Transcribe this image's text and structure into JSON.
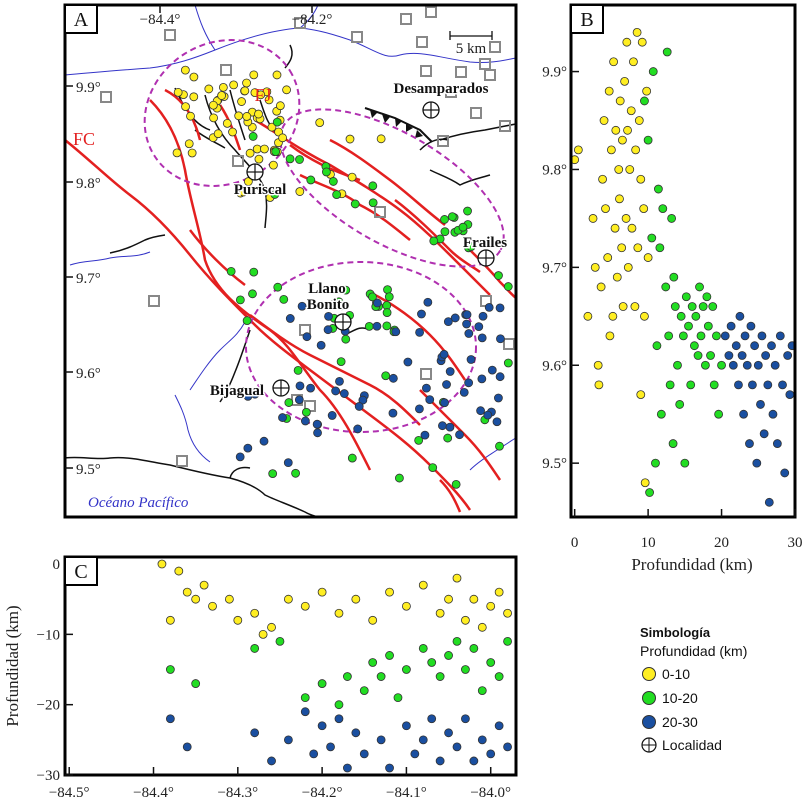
{
  "panels": {
    "a": {
      "letter": "A",
      "lon_ticks": [
        "−84.4°",
        "−84.2°"
      ],
      "lat_ticks": [
        "9.9°",
        "9.8°",
        "9.7°",
        "9.6°",
        "9.5°"
      ],
      "places": [
        "Desamparados",
        "Puriscal",
        "Frailes",
        "Llano",
        "Bonito",
        "Bijagual"
      ],
      "faults": [
        "FJ",
        "FC"
      ],
      "ocean": "Océano Pacífico",
      "scale_bar": "5 km"
    },
    "b": {
      "letter": "B",
      "lat_ticks": [
        "9.9°",
        "9.8°",
        "9.7°",
        "9.6°",
        "9.5°"
      ],
      "depth_ticks": [
        "0",
        "10",
        "20",
        "30"
      ],
      "xlabel": "Profundidad (km)"
    },
    "c": {
      "letter": "C",
      "depth_ticks": [
        "0",
        "−10",
        "−20",
        "−30"
      ],
      "lon_ticks": [
        "−84.5°",
        "−84.4°",
        "−84.3°",
        "−84.2°",
        "−84.1°",
        "−84.0°"
      ],
      "ylabel": "Profundidad (km)"
    }
  },
  "legend": {
    "title": "Simbología",
    "subtitle": "Profundidad (km)",
    "items": [
      {
        "label": "0-10",
        "color": "#ffee22"
      },
      {
        "label": "10-20",
        "color": "#22dd22"
      },
      {
        "label": "20-30",
        "color": "#1a4fa0"
      },
      {
        "label": "Localidad",
        "color": "#ffffff"
      }
    ]
  },
  "colors": {
    "fault": "#e32020",
    "cluster_outline": "#b030b0",
    "rivers": "#3434c8",
    "station": "#888888",
    "shallow": "#ffee22",
    "intermediate": "#22dd22",
    "deep": "#1a4fa0"
  },
  "chart_data": [
    {
      "type": "scatter",
      "panel": "B",
      "xlabel": "Profundidad (km)",
      "ylabel": "",
      "xlim": [
        -0.5,
        30
      ],
      "ylim": [
        9.445,
        9.968
      ],
      "series": [
        {
          "name": "0-10",
          "points": [
            [
              0,
              9.81
            ],
            [
              0.5,
              9.82
            ],
            [
              1.8,
              9.65
            ],
            [
              2.5,
              9.75
            ],
            [
              2.8,
              9.7
            ],
            [
              3.2,
              9.6
            ],
            [
              3.3,
              9.58
            ],
            [
              3.6,
              9.68
            ],
            [
              3.8,
              9.79
            ],
            [
              4,
              9.85
            ],
            [
              4.2,
              9.76
            ],
            [
              4.5,
              9.71
            ],
            [
              4.7,
              9.88
            ],
            [
              4.8,
              9.63
            ],
            [
              5,
              9.82
            ],
            [
              5.2,
              9.65
            ],
            [
              5.3,
              9.91
            ],
            [
              5.5,
              9.74
            ],
            [
              5.6,
              9.84
            ],
            [
              5.8,
              9.69
            ],
            [
              6,
              9.8
            ],
            [
              6.1,
              9.77
            ],
            [
              6.2,
              9.87
            ],
            [
              6.4,
              9.72
            ],
            [
              6.5,
              9.83
            ],
            [
              6.6,
              9.66
            ],
            [
              6.8,
              9.89
            ],
            [
              7,
              9.75
            ],
            [
              7.1,
              9.93
            ],
            [
              7.2,
              9.84
            ],
            [
              7.3,
              9.7
            ],
            [
              7.5,
              9.8
            ],
            [
              7.7,
              9.86
            ],
            [
              7.8,
              9.74
            ],
            [
              8,
              9.91
            ],
            [
              8.2,
              9.66
            ],
            [
              8.3,
              9.82
            ],
            [
              8.5,
              9.94
            ],
            [
              8.6,
              9.72
            ],
            [
              8.8,
              9.85
            ],
            [
              9,
              9.79
            ],
            [
              9,
              9.57
            ],
            [
              9.2,
              9.93
            ],
            [
              9.4,
              9.76
            ],
            [
              9.5,
              9.65
            ],
            [
              9.6,
              9.48
            ],
            [
              9.8,
              9.88
            ],
            [
              10,
              9.71
            ]
          ]
        },
        {
          "name": "10-20",
          "points": [
            [
              9.5,
              9.87
            ],
            [
              10,
              9.83
            ],
            [
              10.2,
              9.47
            ],
            [
              10.5,
              9.73
            ],
            [
              10.7,
              9.9
            ],
            [
              11,
              9.5
            ],
            [
              11.2,
              9.62
            ],
            [
              11.4,
              9.78
            ],
            [
              11.6,
              9.72
            ],
            [
              11.8,
              9.55
            ],
            [
              12,
              9.76
            ],
            [
              12.2,
              9.44
            ],
            [
              12.4,
              9.68
            ],
            [
              12.6,
              9.92
            ],
            [
              12.8,
              9.63
            ],
            [
              13,
              9.58
            ],
            [
              13.2,
              9.75
            ],
            [
              13.4,
              9.52
            ],
            [
              13.5,
              9.69
            ],
            [
              13.7,
              9.66
            ],
            [
              14,
              9.6
            ],
            [
              14.3,
              9.56
            ],
            [
              14.5,
              9.65
            ],
            [
              14.8,
              9.63
            ],
            [
              15,
              9.5
            ],
            [
              15.2,
              9.67
            ],
            [
              15.5,
              9.64
            ],
            [
              15.8,
              9.58
            ],
            [
              16,
              9.66
            ],
            [
              16.3,
              9.62
            ],
            [
              16.5,
              9.65
            ],
            [
              16.8,
              9.61
            ],
            [
              17,
              9.68
            ],
            [
              17.2,
              9.63
            ],
            [
              17.5,
              9.66
            ],
            [
              17.8,
              9.6
            ],
            [
              18,
              9.67
            ],
            [
              18.2,
              9.64
            ],
            [
              18.5,
              9.61
            ],
            [
              18.8,
              9.66
            ],
            [
              19,
              9.58
            ],
            [
              19.3,
              9.63
            ],
            [
              19.6,
              9.55
            ],
            [
              20,
              9.6
            ]
          ]
        },
        {
          "name": "20-30",
          "points": [
            [
              20.5,
              9.63
            ],
            [
              21,
              9.61
            ],
            [
              21.3,
              9.64
            ],
            [
              21.6,
              9.6
            ],
            [
              22,
              9.62
            ],
            [
              22.3,
              9.58
            ],
            [
              22.5,
              9.65
            ],
            [
              22.8,
              9.61
            ],
            [
              23,
              9.55
            ],
            [
              23.2,
              9.63
            ],
            [
              23.5,
              9.6
            ],
            [
              23.8,
              9.52
            ],
            [
              24,
              9.64
            ],
            [
              24.2,
              9.58
            ],
            [
              24.5,
              9.62
            ],
            [
              24.8,
              9.5
            ],
            [
              25,
              9.6
            ],
            [
              25.3,
              9.56
            ],
            [
              25.5,
              9.63
            ],
            [
              25.8,
              9.53
            ],
            [
              26,
              9.61
            ],
            [
              26.3,
              9.58
            ],
            [
              26.5,
              9.46
            ],
            [
              26.8,
              9.62
            ],
            [
              27,
              9.55
            ],
            [
              27.3,
              9.6
            ],
            [
              27.6,
              9.52
            ],
            [
              28,
              9.63
            ],
            [
              28.3,
              9.58
            ],
            [
              28.6,
              9.49
            ],
            [
              29,
              9.61
            ],
            [
              29.3,
              9.57
            ],
            [
              29.6,
              9.62
            ]
          ]
        }
      ]
    },
    {
      "type": "scatter",
      "panel": "C",
      "xlabel": "",
      "ylabel": "Profundidad (km)",
      "xlim": [
        -84.505,
        -83.97
      ],
      "ylim": [
        -30,
        1
      ],
      "series": [
        {
          "name": "0-10",
          "points": [
            [
              -84.39,
              0
            ],
            [
              -84.37,
              -1
            ],
            [
              -84.36,
              -4
            ],
            [
              -84.35,
              -5
            ],
            [
              -84.33,
              -6
            ],
            [
              -84.31,
              -5
            ],
            [
              -84.3,
              -8
            ],
            [
              -84.28,
              -7
            ],
            [
              -84.26,
              -9
            ],
            [
              -84.24,
              -5
            ],
            [
              -84.22,
              -6
            ],
            [
              -84.2,
              -4
            ],
            [
              -84.18,
              -7
            ],
            [
              -84.16,
              -5
            ],
            [
              -84.14,
              -8
            ],
            [
              -84.12,
              -4
            ],
            [
              -84.1,
              -6
            ],
            [
              -84.08,
              -3
            ],
            [
              -84.06,
              -7
            ],
            [
              -84.05,
              -5
            ],
            [
              -84.04,
              -2
            ],
            [
              -84.03,
              -8
            ],
            [
              -84.02,
              -5
            ],
            [
              -84.01,
              -9
            ],
            [
              -84,
              -6
            ],
            [
              -83.99,
              -4
            ],
            [
              -83.98,
              -7
            ],
            [
              -84.38,
              -8
            ],
            [
              -84.34,
              -3
            ],
            [
              -84.27,
              -10
            ]
          ]
        },
        {
          "name": "10-20",
          "points": [
            [
              -84.38,
              -15
            ],
            [
              -84.35,
              -17
            ],
            [
              -84.28,
              -12
            ],
            [
              -84.25,
              -11
            ],
            [
              -84.22,
              -19
            ],
            [
              -84.2,
              -17
            ],
            [
              -84.18,
              -20
            ],
            [
              -84.17,
              -16
            ],
            [
              -84.15,
              -18
            ],
            [
              -84.14,
              -14
            ],
            [
              -84.13,
              -16
            ],
            [
              -84.12,
              -13
            ],
            [
              -84.11,
              -19
            ],
            [
              -84.1,
              -15
            ],
            [
              -84.08,
              -12
            ],
            [
              -84.07,
              -14
            ],
            [
              -84.06,
              -16
            ],
            [
              -84.05,
              -13
            ],
            [
              -84.04,
              -11
            ],
            [
              -84.03,
              -15
            ],
            [
              -84.02,
              -12
            ],
            [
              -84.01,
              -18
            ],
            [
              -84,
              -14
            ],
            [
              -83.99,
              -16
            ],
            [
              -83.98,
              -11
            ]
          ]
        },
        {
          "name": "20-30",
          "points": [
            [
              -84.38,
              -22
            ],
            [
              -84.36,
              -26
            ],
            [
              -84.28,
              -24
            ],
            [
              -84.26,
              -28
            ],
            [
              -84.24,
              -25
            ],
            [
              -84.22,
              -21
            ],
            [
              -84.21,
              -27
            ],
            [
              -84.2,
              -23
            ],
            [
              -84.19,
              -26
            ],
            [
              -84.18,
              -22
            ],
            [
              -84.17,
              -29
            ],
            [
              -84.16,
              -24
            ],
            [
              -84.15,
              -27
            ],
            [
              -84.13,
              -25
            ],
            [
              -84.12,
              -29
            ],
            [
              -84.1,
              -23
            ],
            [
              -84.09,
              -27
            ],
            [
              -84.08,
              -25
            ],
            [
              -84.07,
              -22
            ],
            [
              -84.06,
              -28
            ],
            [
              -84.05,
              -24
            ],
            [
              -84.04,
              -26
            ],
            [
              -84.03,
              -22
            ],
            [
              -84.02,
              -28
            ],
            [
              -84.01,
              -25
            ],
            [
              -84,
              -27
            ],
            [
              -83.99,
              -23
            ],
            [
              -83.98,
              -26
            ]
          ]
        }
      ]
    }
  ]
}
